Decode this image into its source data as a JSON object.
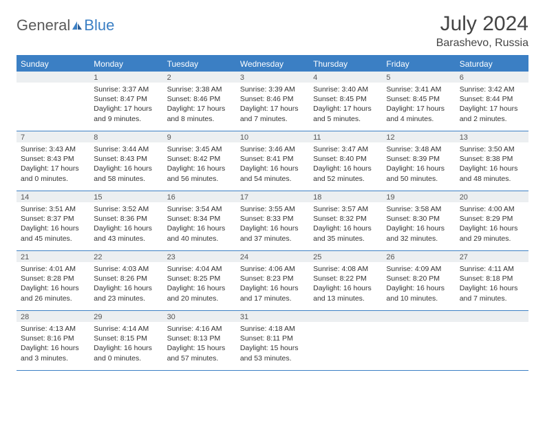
{
  "brand": {
    "main": "General",
    "sub": "Blue"
  },
  "title": "July 2024",
  "location": "Barashevo, Russia",
  "header_color": "#3b7fc4",
  "daybar_color": "#eceff1",
  "weekdays": [
    "Sunday",
    "Monday",
    "Tuesday",
    "Wednesday",
    "Thursday",
    "Friday",
    "Saturday"
  ],
  "weeks": [
    [
      null,
      {
        "n": "1",
        "sr": "Sunrise: 3:37 AM",
        "ss": "Sunset: 8:47 PM",
        "dl": "Daylight: 17 hours and 9 minutes."
      },
      {
        "n": "2",
        "sr": "Sunrise: 3:38 AM",
        "ss": "Sunset: 8:46 PM",
        "dl": "Daylight: 17 hours and 8 minutes."
      },
      {
        "n": "3",
        "sr": "Sunrise: 3:39 AM",
        "ss": "Sunset: 8:46 PM",
        "dl": "Daylight: 17 hours and 7 minutes."
      },
      {
        "n": "4",
        "sr": "Sunrise: 3:40 AM",
        "ss": "Sunset: 8:45 PM",
        "dl": "Daylight: 17 hours and 5 minutes."
      },
      {
        "n": "5",
        "sr": "Sunrise: 3:41 AM",
        "ss": "Sunset: 8:45 PM",
        "dl": "Daylight: 17 hours and 4 minutes."
      },
      {
        "n": "6",
        "sr": "Sunrise: 3:42 AM",
        "ss": "Sunset: 8:44 PM",
        "dl": "Daylight: 17 hours and 2 minutes."
      }
    ],
    [
      {
        "n": "7",
        "sr": "Sunrise: 3:43 AM",
        "ss": "Sunset: 8:43 PM",
        "dl": "Daylight: 17 hours and 0 minutes."
      },
      {
        "n": "8",
        "sr": "Sunrise: 3:44 AM",
        "ss": "Sunset: 8:43 PM",
        "dl": "Daylight: 16 hours and 58 minutes."
      },
      {
        "n": "9",
        "sr": "Sunrise: 3:45 AM",
        "ss": "Sunset: 8:42 PM",
        "dl": "Daylight: 16 hours and 56 minutes."
      },
      {
        "n": "10",
        "sr": "Sunrise: 3:46 AM",
        "ss": "Sunset: 8:41 PM",
        "dl": "Daylight: 16 hours and 54 minutes."
      },
      {
        "n": "11",
        "sr": "Sunrise: 3:47 AM",
        "ss": "Sunset: 8:40 PM",
        "dl": "Daylight: 16 hours and 52 minutes."
      },
      {
        "n": "12",
        "sr": "Sunrise: 3:48 AM",
        "ss": "Sunset: 8:39 PM",
        "dl": "Daylight: 16 hours and 50 minutes."
      },
      {
        "n": "13",
        "sr": "Sunrise: 3:50 AM",
        "ss": "Sunset: 8:38 PM",
        "dl": "Daylight: 16 hours and 48 minutes."
      }
    ],
    [
      {
        "n": "14",
        "sr": "Sunrise: 3:51 AM",
        "ss": "Sunset: 8:37 PM",
        "dl": "Daylight: 16 hours and 45 minutes."
      },
      {
        "n": "15",
        "sr": "Sunrise: 3:52 AM",
        "ss": "Sunset: 8:36 PM",
        "dl": "Daylight: 16 hours and 43 minutes."
      },
      {
        "n": "16",
        "sr": "Sunrise: 3:54 AM",
        "ss": "Sunset: 8:34 PM",
        "dl": "Daylight: 16 hours and 40 minutes."
      },
      {
        "n": "17",
        "sr": "Sunrise: 3:55 AM",
        "ss": "Sunset: 8:33 PM",
        "dl": "Daylight: 16 hours and 37 minutes."
      },
      {
        "n": "18",
        "sr": "Sunrise: 3:57 AM",
        "ss": "Sunset: 8:32 PM",
        "dl": "Daylight: 16 hours and 35 minutes."
      },
      {
        "n": "19",
        "sr": "Sunrise: 3:58 AM",
        "ss": "Sunset: 8:30 PM",
        "dl": "Daylight: 16 hours and 32 minutes."
      },
      {
        "n": "20",
        "sr": "Sunrise: 4:00 AM",
        "ss": "Sunset: 8:29 PM",
        "dl": "Daylight: 16 hours and 29 minutes."
      }
    ],
    [
      {
        "n": "21",
        "sr": "Sunrise: 4:01 AM",
        "ss": "Sunset: 8:28 PM",
        "dl": "Daylight: 16 hours and 26 minutes."
      },
      {
        "n": "22",
        "sr": "Sunrise: 4:03 AM",
        "ss": "Sunset: 8:26 PM",
        "dl": "Daylight: 16 hours and 23 minutes."
      },
      {
        "n": "23",
        "sr": "Sunrise: 4:04 AM",
        "ss": "Sunset: 8:25 PM",
        "dl": "Daylight: 16 hours and 20 minutes."
      },
      {
        "n": "24",
        "sr": "Sunrise: 4:06 AM",
        "ss": "Sunset: 8:23 PM",
        "dl": "Daylight: 16 hours and 17 minutes."
      },
      {
        "n": "25",
        "sr": "Sunrise: 4:08 AM",
        "ss": "Sunset: 8:22 PM",
        "dl": "Daylight: 16 hours and 13 minutes."
      },
      {
        "n": "26",
        "sr": "Sunrise: 4:09 AM",
        "ss": "Sunset: 8:20 PM",
        "dl": "Daylight: 16 hours and 10 minutes."
      },
      {
        "n": "27",
        "sr": "Sunrise: 4:11 AM",
        "ss": "Sunset: 8:18 PM",
        "dl": "Daylight: 16 hours and 7 minutes."
      }
    ],
    [
      {
        "n": "28",
        "sr": "Sunrise: 4:13 AM",
        "ss": "Sunset: 8:16 PM",
        "dl": "Daylight: 16 hours and 3 minutes."
      },
      {
        "n": "29",
        "sr": "Sunrise: 4:14 AM",
        "ss": "Sunset: 8:15 PM",
        "dl": "Daylight: 16 hours and 0 minutes."
      },
      {
        "n": "30",
        "sr": "Sunrise: 4:16 AM",
        "ss": "Sunset: 8:13 PM",
        "dl": "Daylight: 15 hours and 57 minutes."
      },
      {
        "n": "31",
        "sr": "Sunrise: 4:18 AM",
        "ss": "Sunset: 8:11 PM",
        "dl": "Daylight: 15 hours and 53 minutes."
      },
      null,
      null,
      null
    ]
  ]
}
